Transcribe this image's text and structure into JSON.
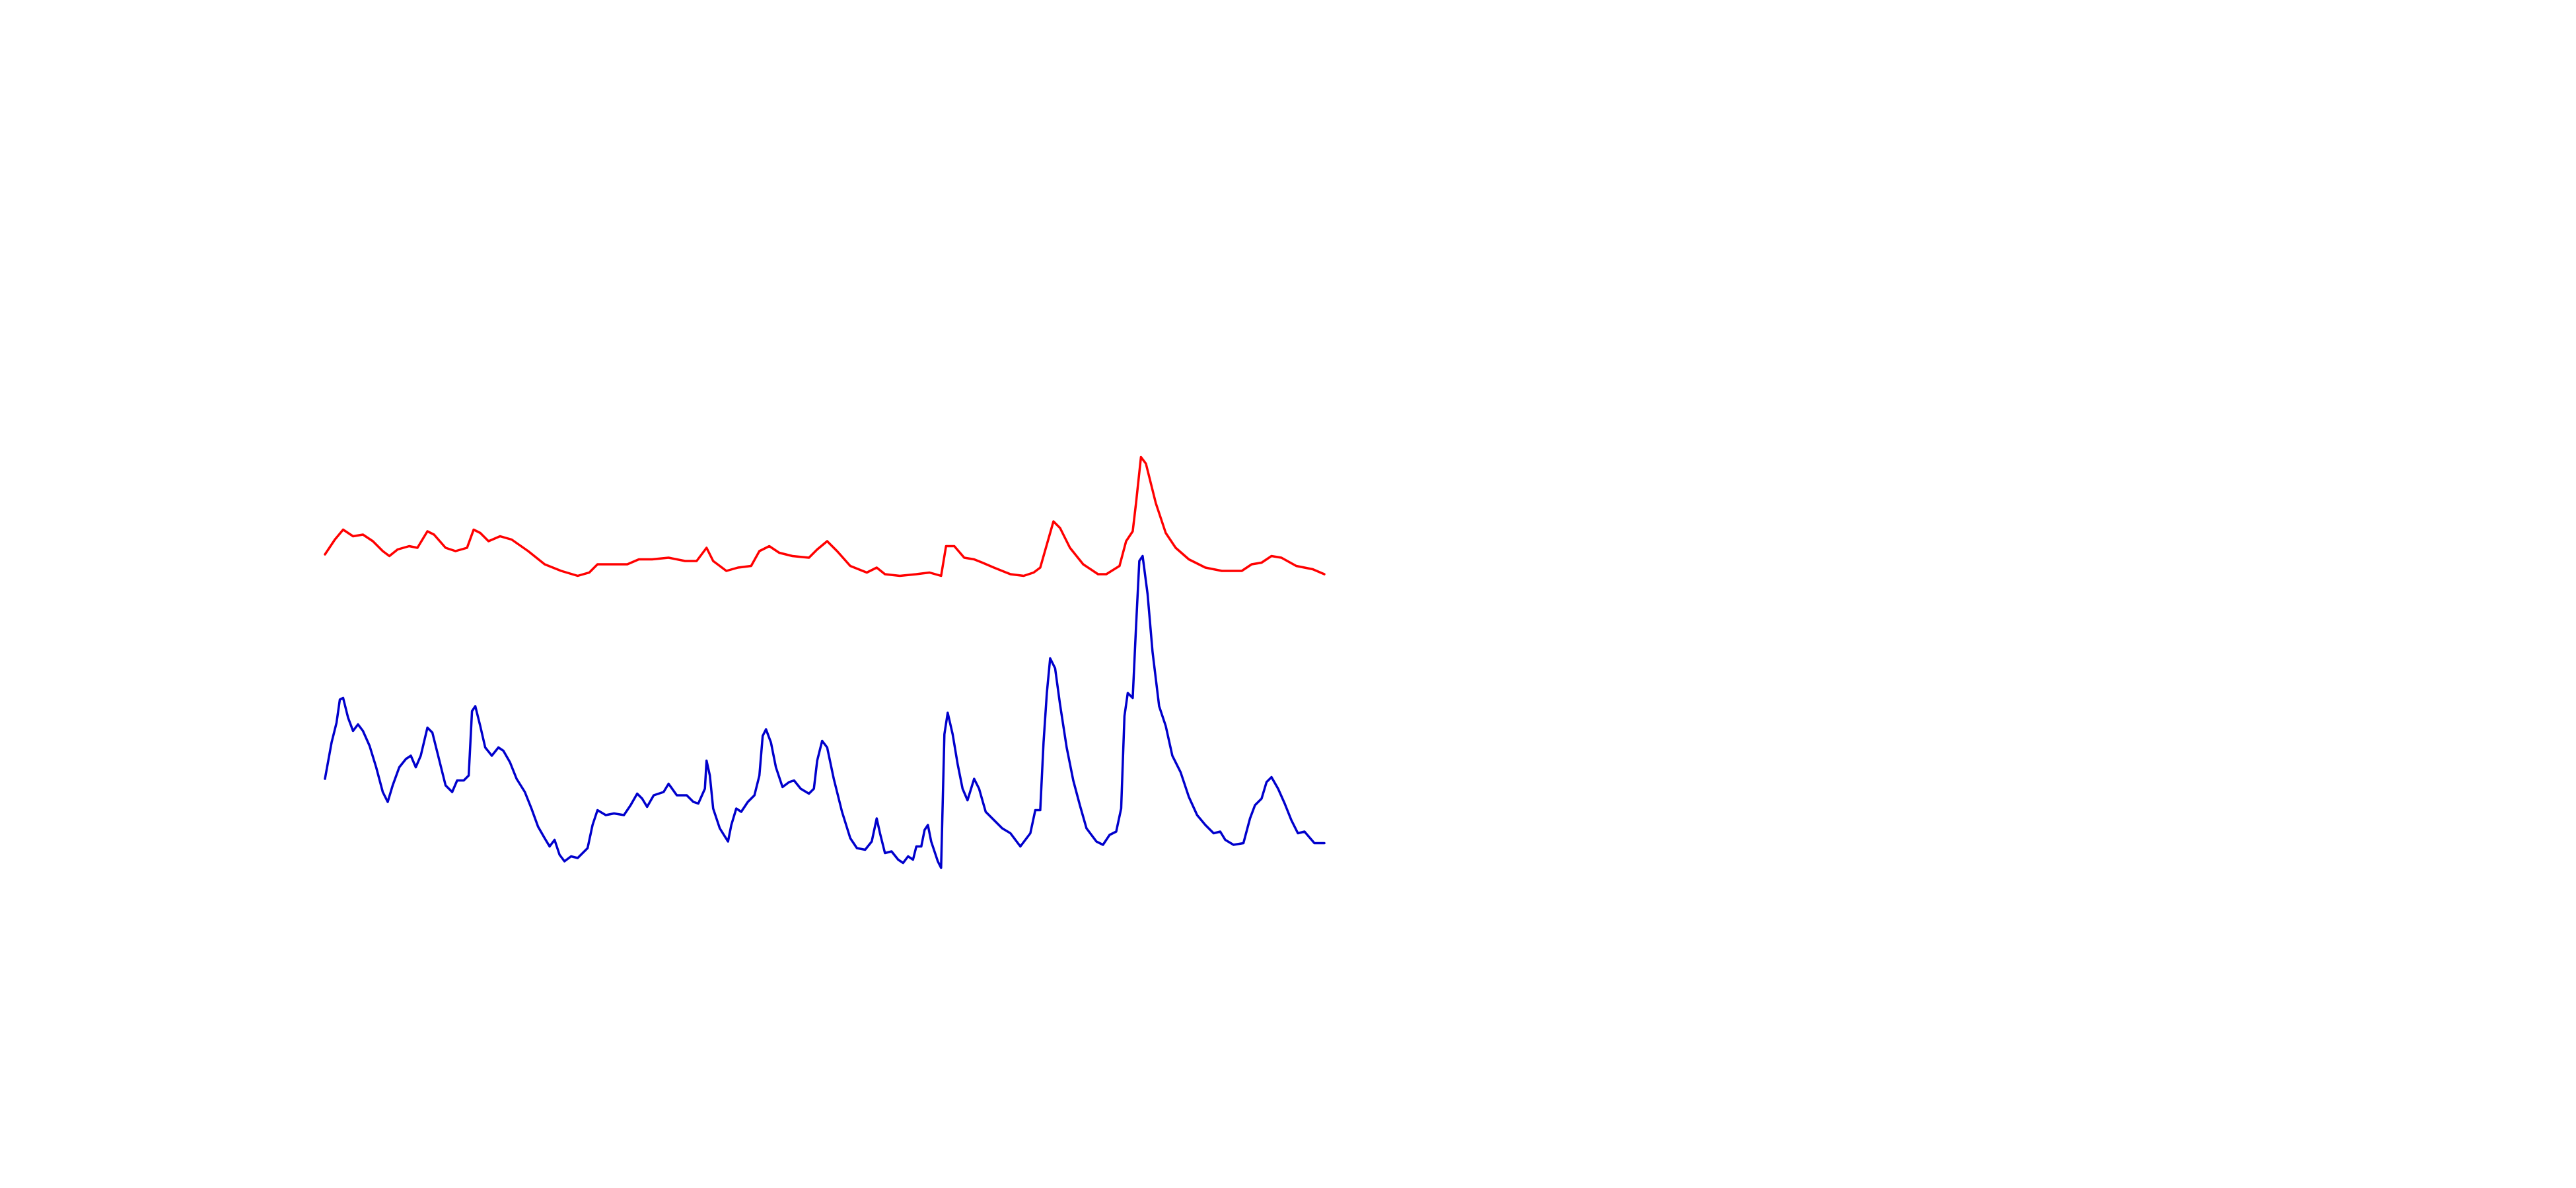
{
  "chart_data": {
    "type": "line",
    "xlim": [
      0,
      605
    ],
    "ylim": [
      0,
      260
    ],
    "grid": false,
    "series": [
      {
        "color": "#ff0000",
        "x": [
          0,
          6,
          11,
          17,
          23,
          29,
          35,
          39,
          44,
          51,
          56,
          62,
          66,
          73,
          79,
          86,
          90,
          94,
          99,
          106,
          113,
          123,
          133,
          143,
          153,
          160,
          165,
          173,
          183,
          190,
          198,
          208,
          218,
          225,
          231,
          235,
          243,
          250,
          258,
          263,
          269,
          275,
          283,
          293,
          298,
          304,
          310,
          318,
          328,
          334,
          339,
          348,
          358,
          366,
          373,
          376,
          381,
          387,
          393,
          398,
          405,
          415,
          423,
          429,
          433,
          437,
          441,
          445,
          451,
          459,
          468,
          473,
          481,
          485,
          489,
          491,
          494,
          497,
          503,
          509,
          515,
          523,
          533,
          543,
          555,
          561,
          567,
          573,
          579,
          588,
          598,
          605
        ],
        "values": [
          194,
          203,
          209,
          205,
          206,
          202,
          196,
          193,
          197,
          199,
          198,
          208,
          206,
          198,
          196,
          198,
          209,
          207,
          202,
          205,
          203,
          196,
          188,
          184,
          181,
          183,
          188,
          188,
          188,
          191,
          191,
          192,
          190,
          190,
          198,
          190,
          184,
          186,
          187,
          196,
          199,
          195,
          193,
          192,
          197,
          202,
          196,
          187,
          183,
          186,
          182,
          181,
          182,
          183,
          181,
          199,
          199,
          192,
          191,
          189,
          186,
          182,
          181,
          183,
          186,
          200,
          214,
          210,
          198,
          188,
          182,
          182,
          187,
          202,
          208,
          225,
          253,
          249,
          225,
          207,
          198,
          191,
          186,
          184,
          184,
          188,
          189,
          193,
          192,
          187,
          185,
          182
        ]
      },
      {
        "color": "#0000cc",
        "x": [
          0,
          4,
          7,
          9,
          11,
          14,
          17,
          20,
          23,
          27,
          31,
          35,
          38,
          41,
          45,
          49,
          52,
          55,
          58,
          62,
          65,
          69,
          73,
          77,
          80,
          84,
          87,
          89,
          91,
          94,
          97,
          101,
          105,
          108,
          112,
          116,
          121,
          125,
          129,
          133,
          136,
          139,
          142,
          145,
          149,
          153,
          159,
          162,
          165,
          170,
          175,
          181,
          185,
          189,
          192,
          195,
          199,
          205,
          208,
          213,
          219,
          223,
          226,
          230,
          231,
          233,
          235,
          239,
          244,
          246,
          249,
          252,
          256,
          260,
          263,
          265,
          267,
          270,
          273,
          277,
          281,
          284,
          288,
          293,
          296,
          298,
          301,
          304,
          308,
          313,
          318,
          322,
          327,
          331,
          334,
          336,
          339,
          343,
          347,
          350,
          353,
          356,
          358,
          361,
          363,
          365,
          367,
          371,
          373,
          375,
          377,
          380,
          383,
          386,
          389,
          393,
          396,
          400,
          405,
          410,
          415,
          421,
          427,
          430,
          433,
          435,
          437,
          439,
          442,
          445,
          449,
          453,
          457,
          461,
          467,
          471,
          475,
          479,
          482,
          484,
          486,
          489,
          491,
          493,
          495,
          498,
          501,
          505,
          509,
          513,
          518,
          523,
          528,
          533,
          538,
          542,
          545,
          550,
          556,
          560,
          563,
          567,
          570,
          573,
          577,
          581,
          585,
          589,
          593,
          599,
          605
        ],
        "values": [
          58,
          80,
          92,
          106,
          107,
          95,
          87,
          91,
          87,
          78,
          65,
          50,
          44,
          54,
          65,
          70,
          72,
          65,
          72,
          89,
          86,
          70,
          54,
          50,
          57,
          57,
          60,
          99,
          102,
          90,
          77,
          72,
          77,
          75,
          68,
          58,
          50,
          40,
          29,
          22,
          17,
          21,
          12,
          8,
          11,
          10,
          16,
          30,
          39,
          36,
          37,
          36,
          42,
          49,
          46,
          41,
          48,
          50,
          55,
          48,
          48,
          44,
          43,
          52,
          69,
          60,
          40,
          28,
          20,
          30,
          40,
          38,
          44,
          48,
          60,
          84,
          88,
          80,
          65,
          53,
          56,
          57,
          52,
          49,
          52,
          69,
          81,
          77,
          58,
          38,
          22,
          16,
          15,
          20,
          34,
          25,
          13,
          14,
          9,
          7,
          11,
          9,
          17,
          17,
          27,
          30,
          20,
          8,
          4,
          85,
          98,
          85,
          67,
          52,
          45,
          58,
          52,
          38,
          33,
          28,
          25,
          17,
          25,
          39,
          39,
          80,
          110,
          131,
          125,
          103,
          77,
          57,
          42,
          28,
          20,
          18,
          24,
          26,
          40,
          96,
          110,
          107,
          150,
          190,
          193,
          170,
          135,
          102,
          90,
          72,
          62,
          47,
          36,
          30,
          25,
          26,
          21,
          18,
          19,
          34,
          42,
          46,
          56,
          59,
          52,
          43,
          33,
          25,
          26,
          19,
          19
        ]
      }
    ]
  }
}
